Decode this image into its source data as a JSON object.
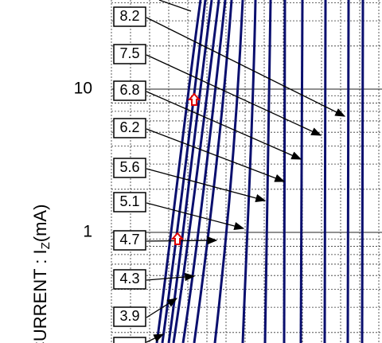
{
  "y_axis": {
    "label": "CURRENT : I",
    "label_sub": "Z",
    "label_unit": "(mA)",
    "tick_labels": [
      "10",
      "1"
    ]
  },
  "curve_labels": [
    "8.2",
    "7.5",
    "6.8",
    "6.2",
    "5.6",
    "5.1",
    "4.7",
    "4.3",
    "3.9"
  ]
}
